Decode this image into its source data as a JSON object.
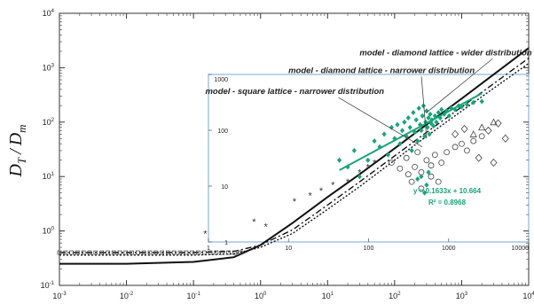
{
  "chart_data": {
    "type": "scatter",
    "ylabel": "D_T / D_m",
    "ylabel_main": "D",
    "ylabel_sub1": "T",
    "ylabel_slash": "/",
    "ylabel_main2": "D",
    "ylabel_sub2": "m",
    "x_scale": "log",
    "y_scale": "log",
    "xlim": [
      0.001,
      10000
    ],
    "ylim": [
      0.1,
      10000
    ],
    "x_tick_values": [
      0.001,
      0.01,
      0.1,
      1,
      10,
      100,
      1000,
      10000
    ],
    "x_tick_mantissa": [
      "10",
      "10",
      "10",
      "10",
      "10",
      "10",
      "10",
      "10"
    ],
    "x_tick_exponents": [
      "-3",
      "-2",
      "-1",
      "0",
      "1",
      "2",
      "3",
      "4"
    ],
    "y_tick_values": [
      0.1,
      1,
      10,
      100,
      1000,
      10000
    ],
    "y_tick_mantissa": [
      "10",
      "10",
      "10",
      "10",
      "10",
      "10"
    ],
    "y_tick_exponents": [
      "-1",
      "0",
      "1",
      "2",
      "3",
      "4"
    ],
    "annotations": [
      {
        "text": "model - diamond lattice - wider distribution",
        "label_at": [
          30,
          1700
        ],
        "arrow_to": [
          300,
          150
        ]
      },
      {
        "text": "model - diamond lattice - narrower distribution",
        "label_at": [
          2.6,
          800
        ],
        "arrow_to": [
          300,
          50
        ]
      },
      {
        "text": "model - square lattice - narrower distribution",
        "label_at": [
          0.15,
          330
        ],
        "arrow_to": [
          260,
          35
        ]
      }
    ],
    "model_curves": [
      {
        "name": "square lattice - narrower",
        "style": "solid",
        "x": [
          0.001,
          0.01,
          0.1,
          0.4,
          1,
          3,
          10,
          30,
          100,
          300,
          1000,
          10000
        ],
        "y": [
          0.25,
          0.25,
          0.27,
          0.33,
          0.55,
          1.4,
          4.2,
          11,
          33,
          90,
          270,
          2300
        ]
      },
      {
        "name": "diamond lattice - narrower",
        "style": "dashdot",
        "x": [
          0.001,
          0.01,
          0.1,
          0.4,
          1,
          3,
          10,
          30,
          100,
          300,
          1000,
          10000
        ],
        "y": [
          0.4,
          0.4,
          0.4,
          0.42,
          0.55,
          1.05,
          3.0,
          8.0,
          24,
          65,
          190,
          1500
        ]
      },
      {
        "name": "diamond lattice - wider",
        "style": "dotted",
        "x": [
          0.001,
          0.01,
          0.1,
          0.4,
          1,
          3,
          10,
          30,
          100,
          300,
          1000,
          10000
        ],
        "y": [
          0.36,
          0.36,
          0.36,
          0.38,
          0.5,
          0.9,
          2.5,
          6.5,
          20,
          55,
          160,
          1200
        ]
      }
    ],
    "stars": [
      [
        0.15,
        0.9
      ],
      [
        0.8,
        1.5
      ],
      [
        1.2,
        1.2
      ],
      [
        3.2,
        3.5
      ],
      [
        5.5,
        4.5
      ],
      [
        8,
        5.5
      ],
      [
        12,
        7
      ],
      [
        20,
        8
      ],
      [
        30,
        12
      ],
      [
        40,
        15
      ],
      [
        50,
        18
      ]
    ],
    "open_circles": [
      [
        90,
        18
      ],
      [
        120,
        14
      ],
      [
        160,
        11
      ],
      [
        200,
        15
      ],
      [
        250,
        12
      ],
      [
        300,
        20
      ],
      [
        350,
        16
      ],
      [
        400,
        25
      ],
      [
        500,
        18
      ],
      [
        600,
        28
      ],
      [
        800,
        35
      ],
      [
        1000,
        40
      ],
      [
        1200,
        30
      ],
      [
        1500,
        45
      ],
      [
        2000,
        55
      ],
      [
        180,
        8
      ],
      [
        250,
        6
      ],
      [
        350,
        10
      ],
      [
        450,
        8
      ],
      [
        150,
        22
      ],
      [
        220,
        28
      ]
    ],
    "open_diamonds": [
      [
        1800,
        22
      ],
      [
        3000,
        18
      ],
      [
        4500,
        50
      ],
      [
        2500,
        70
      ],
      [
        3500,
        95
      ],
      [
        800,
        60
      ],
      [
        1100,
        75
      ]
    ],
    "open_triangles": [
      [
        2000,
        80
      ],
      [
        3000,
        100
      ],
      [
        1500,
        60
      ]
    ],
    "green_points": [
      [
        15,
        20
      ],
      [
        20,
        15
      ],
      [
        25,
        30
      ],
      [
        30,
        10
      ],
      [
        40,
        20
      ],
      [
        50,
        45
      ],
      [
        60,
        35
      ],
      [
        70,
        60
      ],
      [
        80,
        25
      ],
      [
        90,
        80
      ],
      [
        100,
        50
      ],
      [
        110,
        90
      ],
      [
        120,
        40
      ],
      [
        130,
        70
      ],
      [
        140,
        100
      ],
      [
        150,
        55
      ],
      [
        160,
        120
      ],
      [
        170,
        80
      ],
      [
        180,
        30
      ],
      [
        190,
        150
      ],
      [
        200,
        65
      ],
      [
        210,
        110
      ],
      [
        220,
        45
      ],
      [
        230,
        180
      ],
      [
        240,
        90
      ],
      [
        250,
        70
      ],
      [
        260,
        130
      ],
      [
        270,
        200
      ],
      [
        280,
        55
      ],
      [
        290,
        100
      ],
      [
        300,
        160
      ],
      [
        310,
        80
      ],
      [
        320,
        120
      ],
      [
        330,
        60
      ],
      [
        340,
        140
      ],
      [
        350,
        95
      ],
      [
        360,
        110
      ],
      [
        380,
        85
      ],
      [
        400,
        130
      ],
      [
        420,
        100
      ],
      [
        450,
        150
      ],
      [
        480,
        120
      ],
      [
        500,
        170
      ],
      [
        550,
        140
      ],
      [
        600,
        160
      ],
      [
        650,
        130
      ],
      [
        700,
        180
      ],
      [
        800,
        170
      ],
      [
        900,
        200
      ],
      [
        1000,
        190
      ],
      [
        1200,
        210
      ],
      [
        1500,
        230
      ],
      [
        2000,
        240
      ],
      [
        250,
        10
      ],
      [
        300,
        7
      ],
      [
        320,
        12
      ],
      [
        280,
        5
      ],
      [
        220,
        9
      ]
    ],
    "regression": {
      "x": [
        15,
        2000
      ],
      "y": [
        13.1,
        337
      ],
      "color": "#1aa37a"
    },
    "regression_equation": "y = 0.1633x + 10.664",
    "regression_r2": "R² = 0.8968",
    "inset": {
      "xlim": [
        1,
        10000
      ],
      "ylim": [
        1,
        1000
      ],
      "x_tick_values": [
        1,
        10,
        100,
        1000,
        10000
      ],
      "x_tick_labels": [
        "1",
        "10",
        "100",
        "1000",
        "10000"
      ],
      "y_tick_values": [
        1,
        10,
        100,
        1000
      ],
      "y_tick_labels": [
        "1",
        "10",
        "100",
        "1000"
      ],
      "frame_color": "#8fb6d9"
    }
  }
}
